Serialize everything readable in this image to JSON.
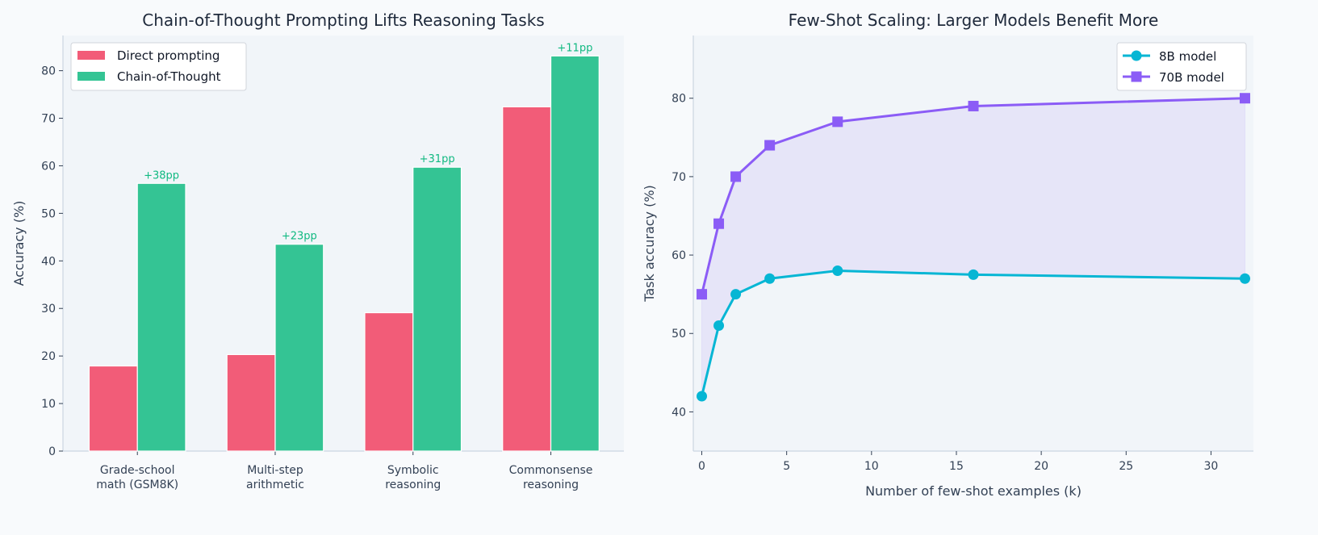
{
  "chart_data": [
    {
      "type": "bar",
      "title": "Chain-of-Thought Prompting Lifts Reasoning Tasks",
      "xlabel": "",
      "ylabel": "Accuracy (%)",
      "ylim": [
        0,
        87.4
      ],
      "yticks": [
        0,
        10,
        20,
        30,
        40,
        50,
        60,
        70,
        80
      ],
      "categories": [
        [
          "Grade-school",
          "math (GSM8K)"
        ],
        [
          "Multi-step",
          "arithmetic"
        ],
        [
          "Symbolic",
          "reasoning"
        ],
        [
          "Commonsense",
          "reasoning"
        ]
      ],
      "series": [
        {
          "name": "Direct prompting",
          "color": "#f25c78",
          "values": [
            17.9,
            20.3,
            29.1,
            72.4
          ]
        },
        {
          "name": "Chain-of-Thought",
          "color": "#34c494",
          "values": [
            56.3,
            43.5,
            59.7,
            83.1
          ]
        }
      ],
      "annotations": [
        "+38pp",
        "+23pp",
        "+31pp",
        "+11pp"
      ],
      "annotation_color": "#10b981",
      "legend": "top-left",
      "grid": false
    },
    {
      "type": "line",
      "title": "Few-Shot Scaling: Larger Models Benefit More",
      "xlabel": "Number of few-shot examples (k)",
      "ylabel": "Task accuracy (%)",
      "xlim": [
        -0.5,
        32.5
      ],
      "ylim": [
        35,
        88
      ],
      "xticks": [
        0,
        5,
        10,
        15,
        20,
        25,
        30
      ],
      "yticks": [
        40,
        50,
        60,
        70,
        80
      ],
      "x": [
        0,
        1,
        2,
        4,
        8,
        16,
        32
      ],
      "series": [
        {
          "name": "8B model",
          "color": "#06b6d4",
          "marker": "circle",
          "values": [
            42,
            51,
            55,
            57,
            58,
            57.5,
            57
          ]
        },
        {
          "name": "70B model",
          "color": "#8b5cf6",
          "marker": "square",
          "values": [
            55,
            64,
            70,
            74,
            77,
            79,
            80
          ]
        }
      ],
      "fill_between": true,
      "legend": "top-right",
      "grid": false
    }
  ]
}
